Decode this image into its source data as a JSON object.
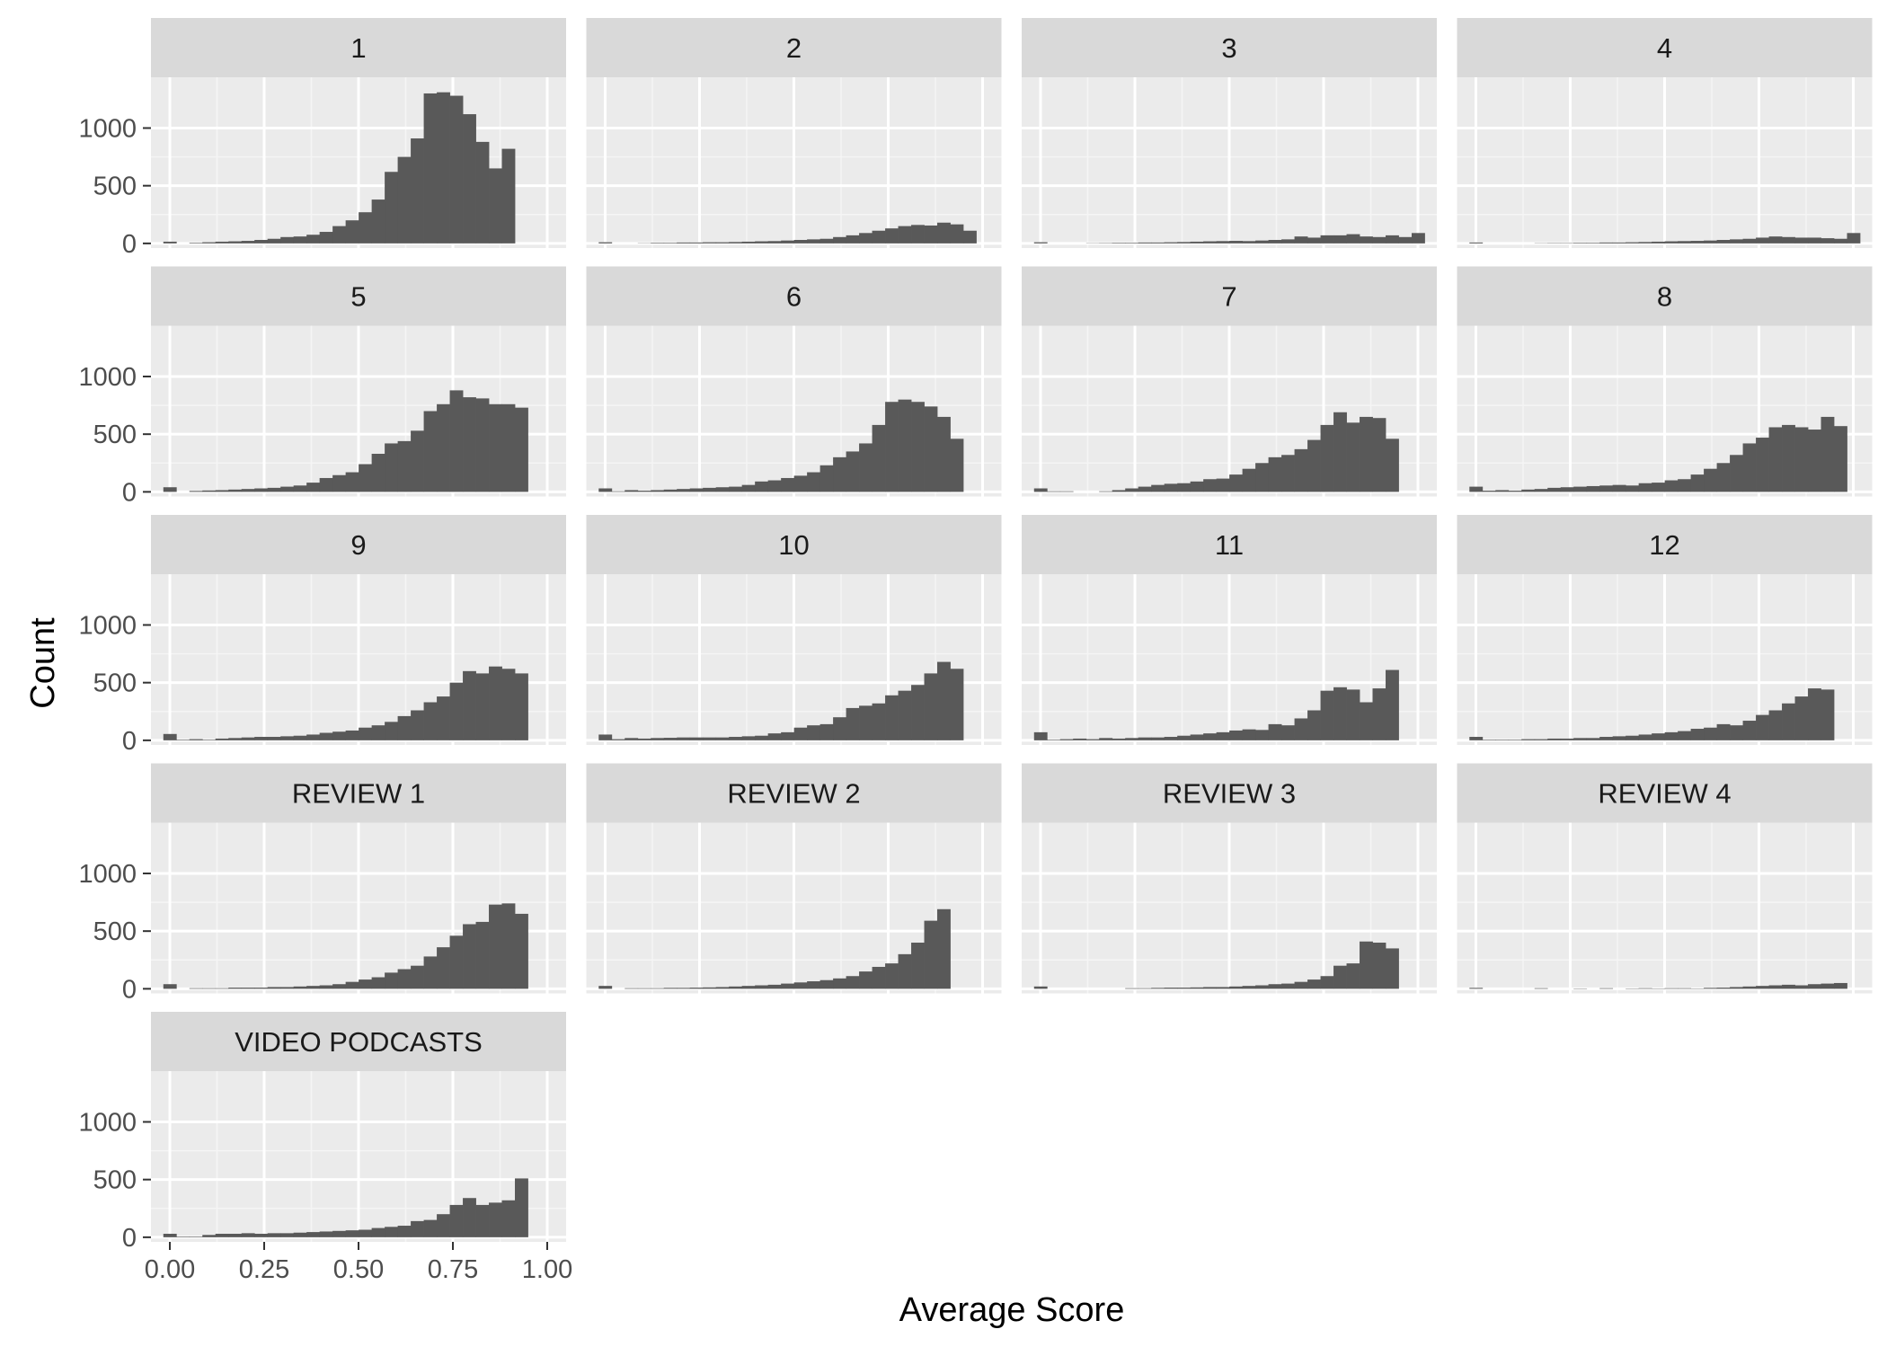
{
  "chart_data": {
    "type": "bar",
    "subtype": "faceted-histogram",
    "xlabel": "Average Score",
    "ylabel": "Count",
    "xlim": [
      -0.05,
      1.05
    ],
    "ylim": [
      -40,
      1440
    ],
    "x_ticks": [
      0,
      0.25,
      0.5,
      0.75,
      1
    ],
    "x_tick_labels": [
      "0.00",
      "0.25",
      "0.50",
      "0.75",
      "1.00"
    ],
    "y_ticks": [
      0,
      500,
      1000
    ],
    "y_tick_labels": [
      "0",
      "500",
      "1000"
    ],
    "bins": {
      "count": 30,
      "start": -0.0172,
      "width": 0.0345
    },
    "grid": true,
    "colors": {
      "panel_bg": "#EBEBEB",
      "strip_bg": "#D9D9D9",
      "bar": "#595959",
      "grid_major": "#FFFFFF",
      "grid_minor": "#F5F5F5",
      "tick": "#333333",
      "tick_label": "#4D4D4D"
    },
    "facet_columns": 4,
    "facets": [
      {
        "label": "1",
        "values": [
          15,
          0,
          5,
          10,
          15,
          18,
          22,
          30,
          40,
          55,
          60,
          75,
          100,
          150,
          200,
          270,
          380,
          620,
          750,
          910,
          1300,
          1310,
          1280,
          1120,
          880,
          650,
          820,
          0,
          0,
          0
        ]
      },
      {
        "label": "2",
        "values": [
          10,
          0,
          0,
          2,
          5,
          5,
          8,
          8,
          10,
          10,
          12,
          15,
          18,
          20,
          25,
          30,
          35,
          40,
          55,
          70,
          90,
          110,
          130,
          150,
          160,
          155,
          180,
          165,
          110,
          0
        ]
      },
      {
        "label": "3",
        "values": [
          10,
          0,
          0,
          0,
          2,
          3,
          5,
          5,
          8,
          8,
          10,
          12,
          15,
          18,
          20,
          22,
          20,
          25,
          30,
          35,
          60,
          50,
          70,
          70,
          80,
          60,
          55,
          70,
          55,
          90
        ]
      },
      {
        "label": "4",
        "values": [
          8,
          0,
          0,
          0,
          0,
          2,
          3,
          3,
          5,
          5,
          8,
          8,
          10,
          12,
          15,
          18,
          20,
          22,
          25,
          30,
          35,
          40,
          50,
          60,
          55,
          50,
          50,
          45,
          40,
          90
        ]
      },
      {
        "label": "5",
        "values": [
          40,
          0,
          8,
          12,
          15,
          20,
          25,
          30,
          35,
          45,
          55,
          80,
          120,
          145,
          170,
          240,
          330,
          420,
          440,
          530,
          700,
          760,
          880,
          820,
          810,
          760,
          760,
          730,
          0,
          0
        ]
      },
      {
        "label": "6",
        "values": [
          30,
          5,
          15,
          10,
          15,
          20,
          25,
          30,
          35,
          40,
          45,
          60,
          90,
          100,
          120,
          140,
          170,
          230,
          300,
          350,
          420,
          580,
          780,
          800,
          780,
          740,
          650,
          460,
          0,
          0
        ]
      },
      {
        "label": "7",
        "values": [
          30,
          5,
          5,
          0,
          0,
          5,
          15,
          30,
          45,
          60,
          70,
          75,
          90,
          110,
          115,
          150,
          200,
          250,
          300,
          320,
          370,
          450,
          580,
          690,
          600,
          650,
          640,
          460,
          0,
          0
        ]
      },
      {
        "label": "8",
        "values": [
          45,
          10,
          15,
          10,
          20,
          25,
          35,
          40,
          45,
          50,
          55,
          60,
          55,
          75,
          80,
          100,
          110,
          150,
          200,
          250,
          320,
          420,
          470,
          560,
          580,
          560,
          540,
          650,
          570,
          0
        ]
      },
      {
        "label": "9",
        "values": [
          55,
          5,
          10,
          5,
          15,
          20,
          25,
          30,
          30,
          35,
          40,
          50,
          65,
          75,
          85,
          110,
          130,
          160,
          210,
          260,
          330,
          380,
          500,
          600,
          580,
          640,
          620,
          580,
          0,
          0
        ]
      },
      {
        "label": "10",
        "values": [
          50,
          10,
          20,
          15,
          20,
          22,
          25,
          25,
          25,
          25,
          30,
          35,
          40,
          60,
          70,
          110,
          130,
          140,
          200,
          280,
          300,
          320,
          390,
          430,
          480,
          580,
          680,
          620,
          0,
          0
        ]
      },
      {
        "label": "11",
        "values": [
          70,
          5,
          10,
          15,
          10,
          20,
          15,
          20,
          25,
          25,
          30,
          40,
          50,
          60,
          70,
          85,
          95,
          90,
          140,
          130,
          190,
          260,
          430,
          460,
          440,
          330,
          450,
          610,
          0,
          0
        ]
      },
      {
        "label": "12",
        "values": [
          30,
          5,
          5,
          5,
          10,
          10,
          15,
          15,
          20,
          20,
          30,
          35,
          40,
          50,
          60,
          70,
          80,
          100,
          110,
          140,
          130,
          170,
          220,
          260,
          320,
          380,
          450,
          440,
          0,
          0
        ]
      },
      {
        "label": "REVIEW 1",
        "values": [
          40,
          0,
          5,
          5,
          5,
          10,
          10,
          10,
          15,
          15,
          20,
          25,
          30,
          40,
          60,
          80,
          100,
          140,
          170,
          200,
          280,
          360,
          460,
          560,
          580,
          730,
          740,
          650,
          0,
          0
        ]
      },
      {
        "label": "REVIEW 2",
        "values": [
          25,
          0,
          5,
          5,
          5,
          8,
          8,
          10,
          12,
          15,
          20,
          25,
          30,
          35,
          45,
          55,
          65,
          75,
          90,
          110,
          150,
          190,
          220,
          300,
          400,
          590,
          690,
          0,
          0,
          0
        ]
      },
      {
        "label": "REVIEW 3",
        "values": [
          20,
          0,
          0,
          0,
          0,
          0,
          0,
          5,
          5,
          8,
          10,
          10,
          12,
          15,
          15,
          20,
          25,
          30,
          40,
          45,
          60,
          80,
          110,
          200,
          220,
          410,
          400,
          350,
          0,
          0
        ]
      },
      {
        "label": "REVIEW 4",
        "values": [
          8,
          0,
          0,
          0,
          0,
          5,
          0,
          0,
          3,
          0,
          5,
          0,
          3,
          5,
          3,
          5,
          5,
          3,
          8,
          10,
          15,
          20,
          25,
          30,
          35,
          30,
          40,
          45,
          50,
          0
        ]
      },
      {
        "label": "VIDEO PODCASTS",
        "values": [
          30,
          5,
          5,
          20,
          30,
          30,
          35,
          30,
          35,
          35,
          40,
          45,
          50,
          55,
          60,
          65,
          80,
          90,
          100,
          140,
          150,
          200,
          280,
          340,
          280,
          300,
          320,
          510,
          0,
          0
        ]
      }
    ]
  }
}
